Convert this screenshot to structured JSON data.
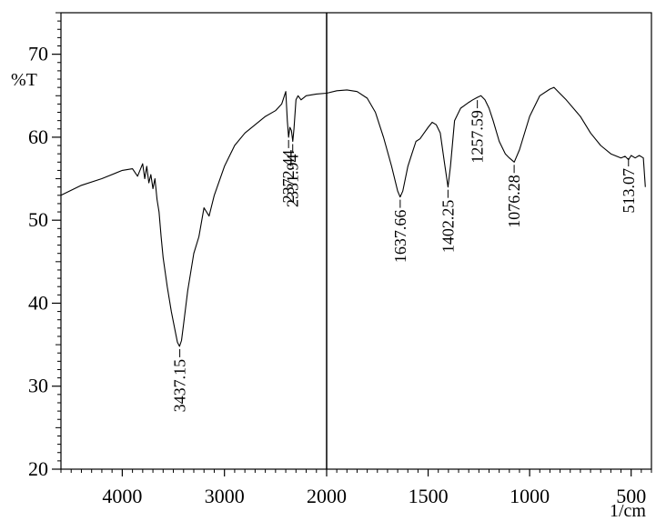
{
  "chart_data": {
    "type": "line",
    "title": "",
    "xlabel": "1/cm",
    "ylabel": "%T",
    "xlim": [
      4600,
      400
    ],
    "ylim": [
      20,
      75
    ],
    "x_scale": "piecewise-linear",
    "x_ticks": [
      {
        "value": 4000,
        "label": "4000"
      },
      {
        "value": 3000,
        "label": "3000"
      },
      {
        "value": 2000,
        "label": "2000"
      },
      {
        "value": 1500,
        "label": "1500"
      },
      {
        "value": 1000,
        "label": "1000"
      },
      {
        "value": 500,
        "label": "500"
      }
    ],
    "y_ticks": [
      {
        "value": 20,
        "label": "20"
      },
      {
        "value": 30,
        "label": "30"
      },
      {
        "value": 40,
        "label": "40"
      },
      {
        "value": 50,
        "label": "50"
      },
      {
        "value": 60,
        "label": "60"
      },
      {
        "value": 70,
        "label": "70"
      }
    ],
    "grid": false,
    "series": [
      {
        "x": [
          4600,
          4400,
          4200,
          4000,
          3900,
          3850,
          3800,
          3780,
          3760,
          3740,
          3720,
          3700,
          3680,
          3660,
          3640,
          3620,
          3600,
          3560,
          3520,
          3480,
          3460,
          3440,
          3420,
          3400,
          3360,
          3300,
          3250,
          3200,
          3150,
          3100,
          3000,
          2900,
          2800,
          2700,
          2600,
          2500,
          2440,
          2400,
          2385,
          2372,
          2360,
          2345,
          2331,
          2320,
          2300,
          2280,
          2250,
          2200,
          2100,
          2000,
          1950,
          1900,
          1850,
          1800,
          1760,
          1720,
          1680,
          1650,
          1638,
          1625,
          1600,
          1580,
          1560,
          1540,
          1520,
          1500,
          1480,
          1460,
          1440,
          1420,
          1402,
          1390,
          1370,
          1340,
          1300,
          1280,
          1258,
          1240,
          1220,
          1200,
          1180,
          1150,
          1120,
          1100,
          1076,
          1050,
          1000,
          950,
          900,
          880,
          860,
          820,
          750,
          700,
          650,
          600,
          550,
          530,
          513,
          500,
          480,
          460,
          440,
          430
        ],
        "y": [
          53.0,
          54.2,
          55.0,
          56.0,
          56.2,
          55.3,
          56.8,
          55.0,
          56.5,
          54.5,
          55.5,
          53.8,
          55.0,
          52.5,
          51.0,
          48.0,
          45.5,
          42.0,
          39.0,
          36.5,
          35.3,
          34.8,
          35.5,
          37.5,
          41.5,
          46.0,
          48.0,
          51.5,
          50.5,
          53.0,
          56.5,
          59.0,
          60.5,
          61.5,
          62.5,
          63.2,
          64.0,
          65.5,
          62.0,
          60.0,
          61.2,
          60.8,
          59.5,
          61.0,
          64.5,
          65.0,
          64.5,
          65.0,
          65.2,
          65.3,
          65.6,
          65.7,
          65.5,
          64.7,
          63.0,
          60.0,
          56.5,
          53.5,
          52.8,
          53.5,
          56.5,
          58.0,
          59.5,
          59.8,
          60.5,
          61.2,
          61.8,
          61.5,
          60.5,
          57.0,
          54.0,
          56.5,
          62.0,
          63.5,
          64.2,
          64.5,
          64.8,
          65.0,
          64.5,
          63.5,
          62.0,
          59.5,
          58.0,
          57.5,
          57.0,
          58.5,
          62.5,
          65.0,
          65.8,
          66.0,
          65.5,
          64.5,
          62.5,
          60.5,
          59.0,
          58.0,
          57.5,
          57.7,
          57.3,
          57.8,
          57.5,
          57.8,
          57.5,
          54.0
        ]
      }
    ],
    "reference_lines": [
      {
        "axis": "x",
        "value": 2000
      }
    ],
    "annotations": [
      {
        "label": "3437.15",
        "x": 3437.15,
        "y": 34.8
      },
      {
        "label": "2372.44",
        "x": 2372.44,
        "y": 60.0
      },
      {
        "label": "2331.94",
        "x": 2331.94,
        "y": 59.5
      },
      {
        "label": "1637.66",
        "x": 1637.66,
        "y": 52.8
      },
      {
        "label": "1402.25",
        "x": 1402.25,
        "y": 54.0
      },
      {
        "label": "1257.59",
        "x": 1257.59,
        "y": 64.8
      },
      {
        "label": "1076.28",
        "x": 1076.28,
        "y": 57.0
      },
      {
        "label": "513.07",
        "x": 513.07,
        "y": 57.8
      }
    ]
  }
}
